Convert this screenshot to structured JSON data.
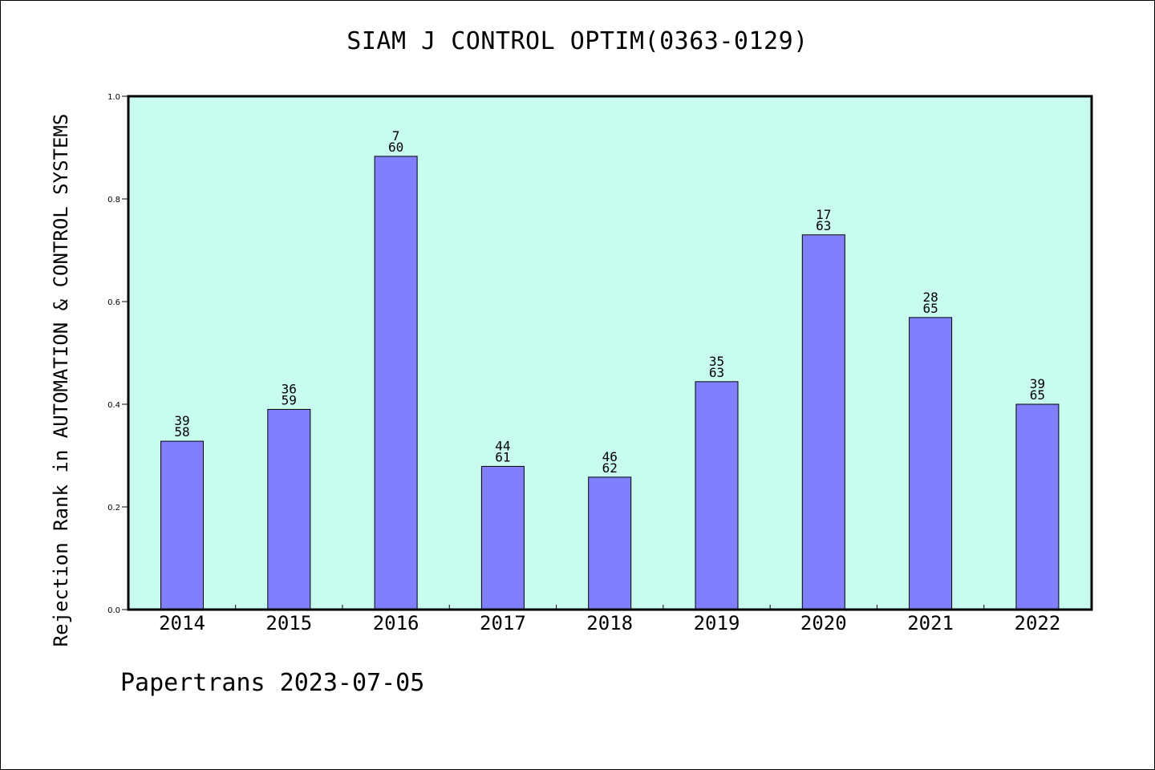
{
  "chart_data": {
    "type": "bar",
    "title": "SIAM J CONTROL OPTIM(0363-0129)",
    "ylabel": "Rejection Rank in AUTOMATION & CONTROL SYSTEMS",
    "xlabel": "",
    "categories": [
      "2014",
      "2015",
      "2016",
      "2017",
      "2018",
      "2019",
      "2020",
      "2021",
      "2022"
    ],
    "values": [
      0.328,
      0.39,
      0.883,
      0.279,
      0.258,
      0.444,
      0.73,
      0.569,
      0.4
    ],
    "label_top": [
      "39",
      "36",
      "7",
      "44",
      "46",
      "35",
      "17",
      "28",
      "39"
    ],
    "label_bottom": [
      "58",
      "59",
      "60",
      "61",
      "62",
      "63",
      "63",
      "65",
      "65"
    ],
    "ylim": [
      0,
      1.0
    ],
    "yticks": [
      "0.0",
      "0.2",
      "0.4",
      "0.6",
      "0.8",
      "1.0"
    ],
    "grid": false,
    "colors": {
      "plot_background": "#c8fcee",
      "bar_fill": "#8080ff",
      "bar_stroke": "#000000"
    }
  },
  "footer": "Papertrans 2023-07-05"
}
